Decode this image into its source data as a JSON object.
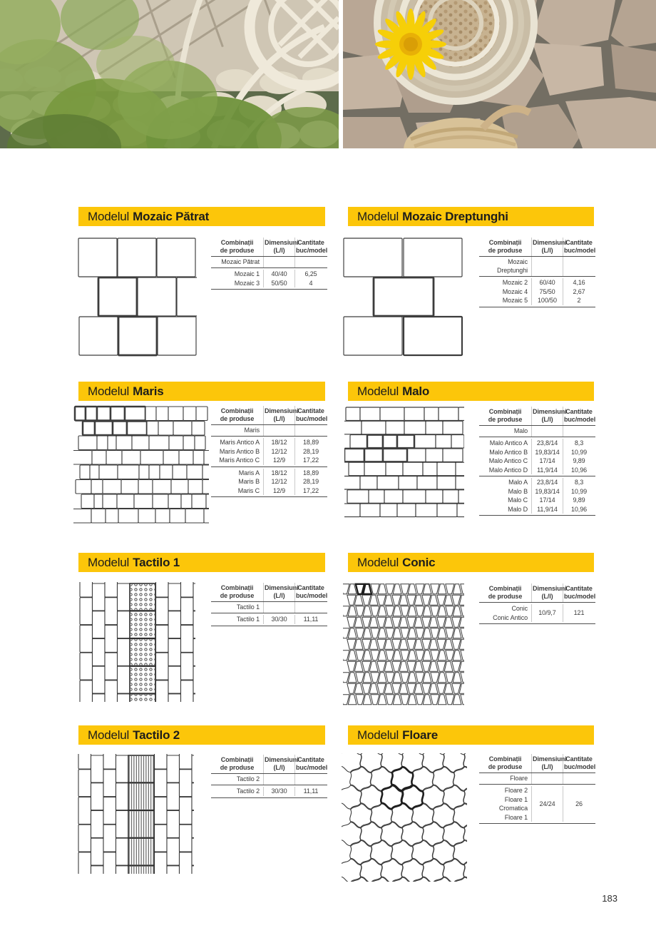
{
  "page": {
    "number": "183"
  },
  "title_prefix": "Modelul",
  "table_headers": {
    "col1": [
      "Combinații",
      "de produse"
    ],
    "col2": [
      "Dimensiuni",
      "(L/l)"
    ],
    "col3": [
      "Cantitate",
      "buc/model"
    ]
  },
  "sections": [
    {
      "id": "mozaic-patrat",
      "name": "Mozaic Pătrat",
      "group": [
        "Mozaic Pătrat"
      ],
      "blocks": [
        {
          "rows": [
            [
              "Mozaic 1",
              "40/40",
              "6,25"
            ],
            [
              "Mozaic 3",
              "50/50",
              "4"
            ]
          ]
        }
      ]
    },
    {
      "id": "mozaic-dreptunghi",
      "name": "Mozaic Dreptunghi",
      "group": [
        "Mozaic",
        "Dreptunghi"
      ],
      "blocks": [
        {
          "rows": [
            [
              "Mozaic 2",
              "60/40",
              "4,16"
            ],
            [
              "Mozaic 4",
              "75/50",
              "2,67"
            ],
            [
              "Mozaic 5",
              "100/50",
              "2"
            ]
          ]
        }
      ]
    },
    {
      "id": "maris",
      "name": "Maris",
      "group": [
        "Maris"
      ],
      "blocks": [
        {
          "rows": [
            [
              "Maris Antico A",
              "18/12",
              "18,89"
            ],
            [
              "Maris Antico B",
              "12/12",
              "28,19"
            ],
            [
              "Maris Antico C",
              "12/9",
              "17,22"
            ]
          ]
        },
        {
          "rows": [
            [
              "Maris A",
              "18/12",
              "18,89"
            ],
            [
              "Maris B",
              "12/12",
              "28,19"
            ],
            [
              "Maris C",
              "12/9",
              "17,22"
            ]
          ]
        }
      ]
    },
    {
      "id": "malo",
      "name": "Malo",
      "group": [
        "Malo"
      ],
      "blocks": [
        {
          "rows": [
            [
              "Malo Antico A",
              "23,8/14",
              "8,3"
            ],
            [
              "Malo Antico B",
              "19,83/14",
              "10,99"
            ],
            [
              "Malo Antico C",
              "17/14",
              "9,89"
            ],
            [
              "Malo Antico D",
              "11,9/14",
              "10,96"
            ]
          ]
        },
        {
          "rows": [
            [
              "Malo A",
              "23,8/14",
              "8,3"
            ],
            [
              "Malo B",
              "19,83/14",
              "10,99"
            ],
            [
              "Malo C",
              "17/14",
              "9,89"
            ],
            [
              "Malo D",
              "11,9/14",
              "10,96"
            ]
          ]
        }
      ]
    },
    {
      "id": "tactilo-1",
      "name": "Tactilo 1",
      "group": [
        "Tactilo 1"
      ],
      "blocks": [
        {
          "rows": [
            [
              "Tactilo 1",
              "30/30",
              "11,11"
            ]
          ]
        }
      ]
    },
    {
      "id": "conic",
      "name": "Conic",
      "group": null,
      "blocks": [
        {
          "merged": {
            "labels": [
              "Conic",
              "Conic Antico"
            ],
            "dim": "10/9,7",
            "qty": "121"
          }
        }
      ]
    },
    {
      "id": "tactilo-2",
      "name": "Tactilo 2",
      "group": [
        "Tactilo 2"
      ],
      "blocks": [
        {
          "rows": [
            [
              "Tactilo 2",
              "30/30",
              "11,11"
            ]
          ]
        }
      ]
    },
    {
      "id": "floare",
      "name": "Floare",
      "group": [
        "Floare"
      ],
      "blocks": [
        {
          "merged": {
            "labels": [
              "Floare 2",
              "Floare 1",
              "Cromatica",
              "Floare 1"
            ],
            "dim": "24/24",
            "qty": "26"
          }
        }
      ]
    }
  ],
  "colors": {
    "accent_yellow": "#FCC60A",
    "line_dark": "#4f4f4f",
    "line_light": "#c9c9c9",
    "text": "#3b3b3b"
  }
}
